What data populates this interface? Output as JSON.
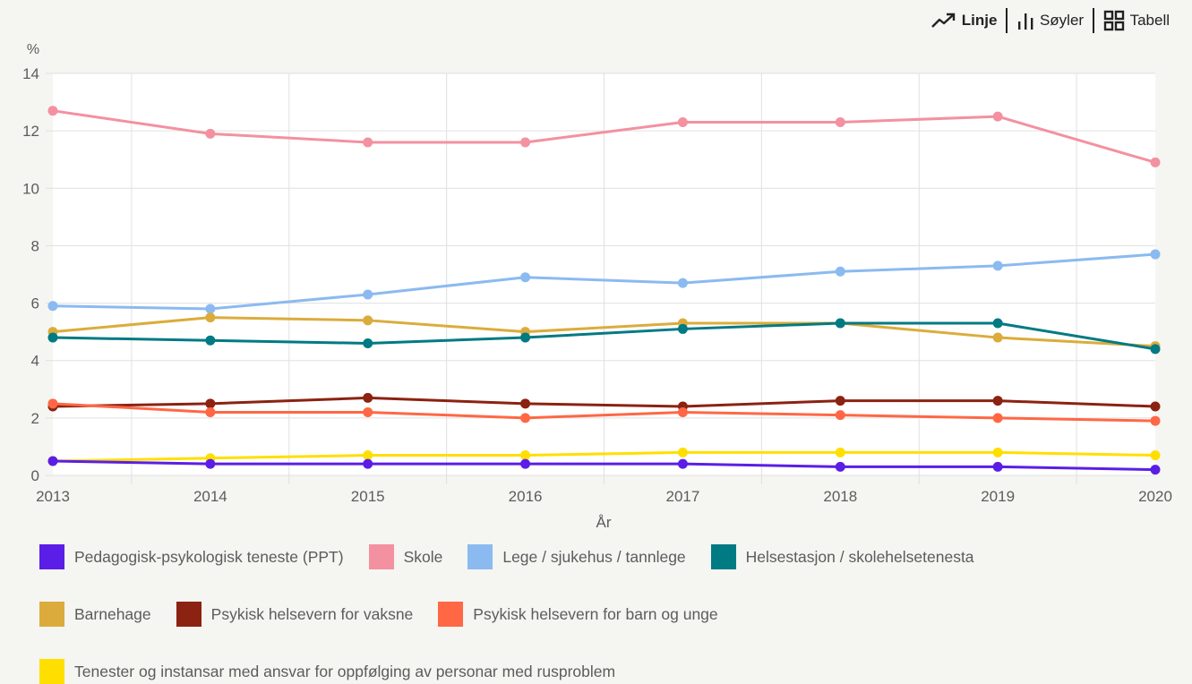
{
  "toolbar": {
    "buttons": [
      {
        "label": "Linje",
        "icon": "trend-line-icon",
        "active": true
      },
      {
        "label": "Søyler",
        "icon": "bar-chart-icon",
        "active": false
      },
      {
        "label": "Tabell",
        "icon": "grid-table-icon",
        "active": false
      }
    ]
  },
  "chart_data": {
    "type": "line",
    "title": "",
    "xlabel": "År",
    "ylabel": "%",
    "ylim": [
      0,
      14
    ],
    "yticks": [
      "0",
      "2",
      "4",
      "6",
      "8",
      "10",
      "12",
      "14"
    ],
    "categories": [
      "2013",
      "2014",
      "2015",
      "2016",
      "2017",
      "2018",
      "2019",
      "2020"
    ],
    "grid": true,
    "legend_position": "bottom",
    "series": [
      {
        "name": "Pedagogisk-psykologisk teneste (PPT)",
        "color": "#5b1ee6",
        "values": [
          0.5,
          0.4,
          0.4,
          0.4,
          0.4,
          0.3,
          0.3,
          0.2
        ]
      },
      {
        "name": "Skole",
        "color": "#f391a0",
        "values": [
          12.7,
          11.9,
          11.6,
          11.6,
          12.3,
          12.3,
          12.5,
          10.9
        ]
      },
      {
        "name": "Lege / sjukehus / tannlege",
        "color": "#8bbaf0",
        "values": [
          5.9,
          5.8,
          6.3,
          6.9,
          6.7,
          7.1,
          7.3,
          7.7
        ]
      },
      {
        "name": "Helsestasjon / skolehelsetenesta",
        "color": "#007a83",
        "values": [
          4.8,
          4.7,
          4.6,
          4.8,
          5.1,
          5.3,
          5.3,
          4.4
        ]
      },
      {
        "name": "Barnehage",
        "color": "#dbac3b",
        "values": [
          5.0,
          5.5,
          5.4,
          5.0,
          5.3,
          5.3,
          4.8,
          4.5
        ]
      },
      {
        "name": "Psykisk helsevern for vaksne",
        "color": "#8b2212",
        "values": [
          2.4,
          2.5,
          2.7,
          2.5,
          2.4,
          2.6,
          2.6,
          2.4
        ]
      },
      {
        "name": "Psykisk helsevern for barn og unge",
        "color": "#ff6745",
        "values": [
          2.5,
          2.2,
          2.2,
          2.0,
          2.2,
          2.1,
          2.0,
          1.9
        ]
      },
      {
        "name": "Tenester og instansar med ansvar for oppfølging av personar med rusproblem",
        "color": "#ffdf00",
        "values": [
          0.5,
          0.6,
          0.7,
          0.7,
          0.8,
          0.8,
          0.8,
          0.7
        ]
      }
    ],
    "draw_order": [
      1,
      2,
      4,
      3,
      5,
      6,
      7,
      0
    ]
  }
}
